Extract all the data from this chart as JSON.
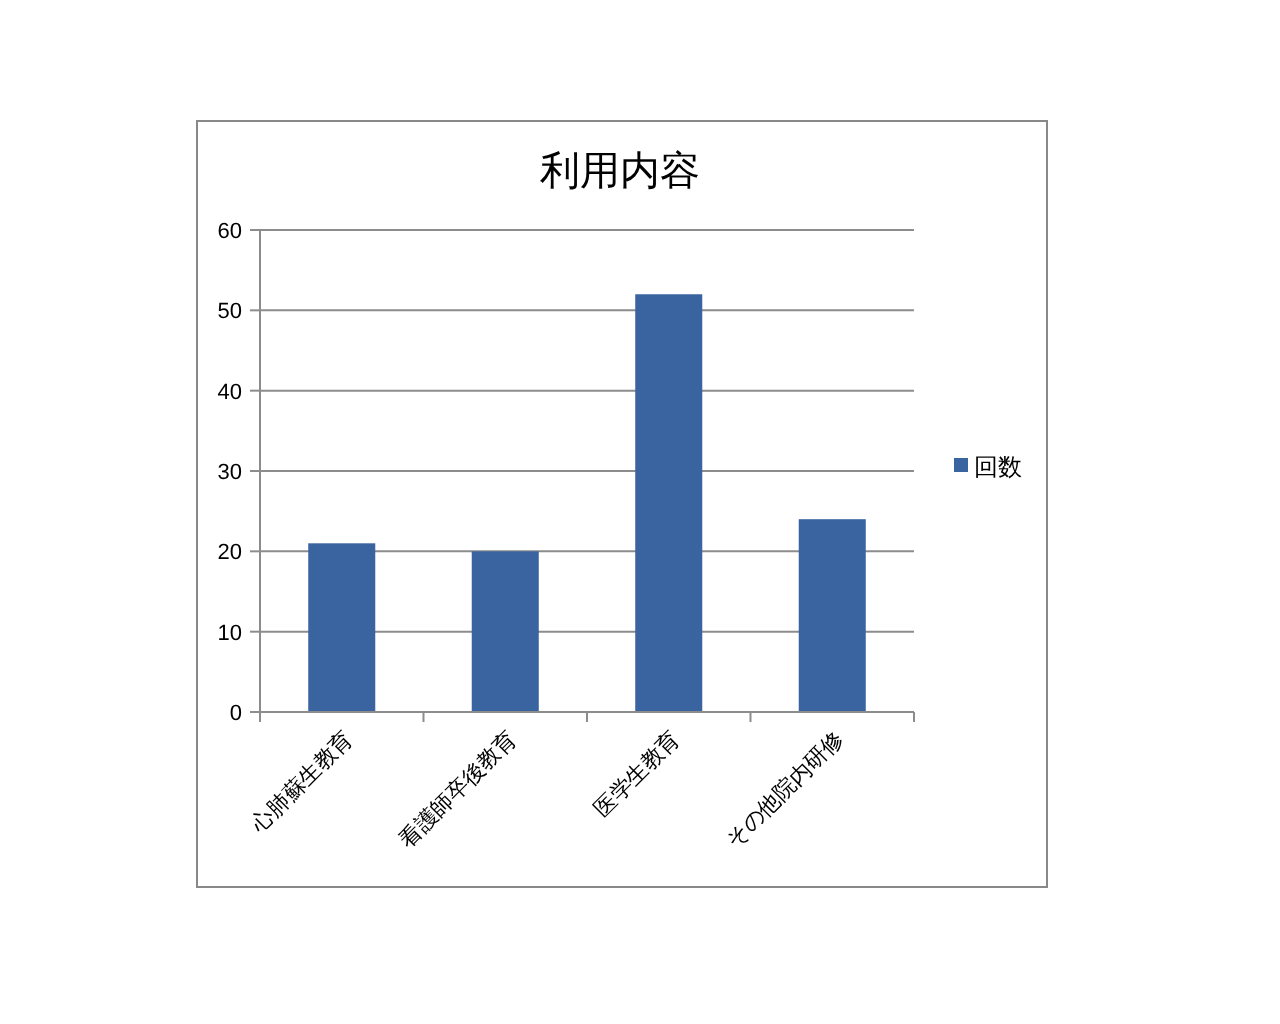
{
  "chart_data": {
    "type": "bar",
    "title": "利用内容",
    "categories": [
      "心肺蘇生教育",
      "看護師卒後教育",
      "医学生教育",
      "その他院内研修"
    ],
    "series": [
      {
        "name": "回数",
        "color": "#3a64a0",
        "values": [
          21,
          20,
          52,
          24
        ]
      }
    ],
    "ylim": [
      0,
      60
    ],
    "yticks": [
      0,
      10,
      20,
      30,
      40,
      50,
      60
    ],
    "grid": "y",
    "legend": "right"
  }
}
